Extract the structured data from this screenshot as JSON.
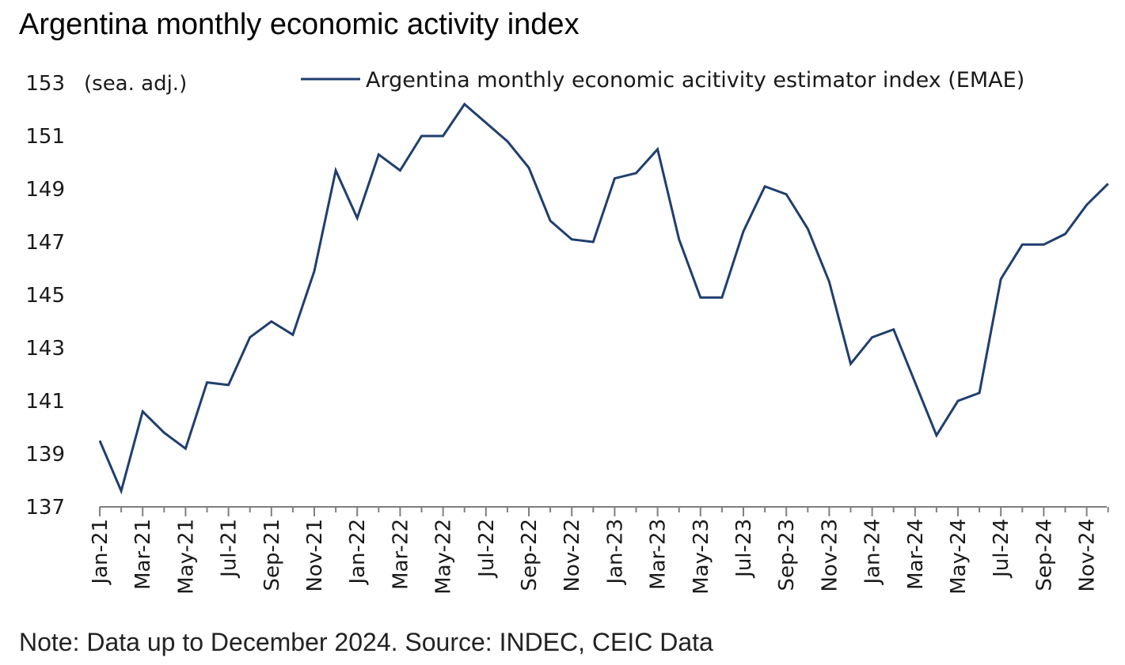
{
  "title": "Argentina monthly economic activity index",
  "note": "Note: Data up to December 2024. Source: INDEC, CEIC Data",
  "chart_data": {
    "type": "line",
    "title": "Argentina monthly economic activity index",
    "unit_label": "(sea. adj.)",
    "xlabel": "",
    "ylabel": "",
    "ylim": [
      137,
      153
    ],
    "yticks": [
      137,
      139,
      141,
      143,
      145,
      147,
      149,
      151,
      153
    ],
    "grid": false,
    "legend_position": "top",
    "line_color": "#1f3f6e",
    "x": [
      "Jan-21",
      "Feb-21",
      "Mar-21",
      "Apr-21",
      "May-21",
      "Jun-21",
      "Jul-21",
      "Aug-21",
      "Sep-21",
      "Oct-21",
      "Nov-21",
      "Dec-21",
      "Jan-22",
      "Feb-22",
      "Mar-22",
      "Apr-22",
      "May-22",
      "Jun-22",
      "Jul-22",
      "Aug-22",
      "Sep-22",
      "Oct-22",
      "Nov-22",
      "Dec-22",
      "Jan-23",
      "Feb-23",
      "Mar-23",
      "Apr-23",
      "May-23",
      "Jun-23",
      "Jul-23",
      "Aug-23",
      "Sep-23",
      "Oct-23",
      "Nov-23",
      "Dec-23",
      "Jan-24",
      "Feb-24",
      "Mar-24",
      "Apr-24",
      "May-24",
      "Jun-24",
      "Jul-24",
      "Aug-24",
      "Sep-24",
      "Oct-24",
      "Nov-24",
      "Dec-24"
    ],
    "xtick_labels": [
      "Jan-21",
      "Mar-21",
      "May-21",
      "Jul-21",
      "Sep-21",
      "Nov-21",
      "Jan-22",
      "Mar-22",
      "May-22",
      "Jul-22",
      "Sep-22",
      "Nov-22",
      "Jan-23",
      "Mar-23",
      "May-23",
      "Jul-23",
      "Sep-23",
      "Nov-23",
      "Jan-24",
      "Mar-24",
      "May-24",
      "Jul-24",
      "Sep-24",
      "Nov-24"
    ],
    "series": [
      {
        "name": "Argentina monthly economic acitivity estimator index (EMAE)",
        "values": [
          139.5,
          137.6,
          140.6,
          139.8,
          139.2,
          141.7,
          141.6,
          143.4,
          144.0,
          143.5,
          145.9,
          149.7,
          147.9,
          150.3,
          149.7,
          151.0,
          151.0,
          152.2,
          151.5,
          150.8,
          149.8,
          147.8,
          147.1,
          147.0,
          149.4,
          149.6,
          150.5,
          147.1,
          144.9,
          144.9,
          147.4,
          149.1,
          148.8,
          147.5,
          145.5,
          142.4,
          143.4,
          143.7,
          141.7,
          139.7,
          141.0,
          141.3,
          145.6,
          146.9,
          146.9,
          147.3,
          148.4,
          149.2
        ]
      }
    ]
  }
}
